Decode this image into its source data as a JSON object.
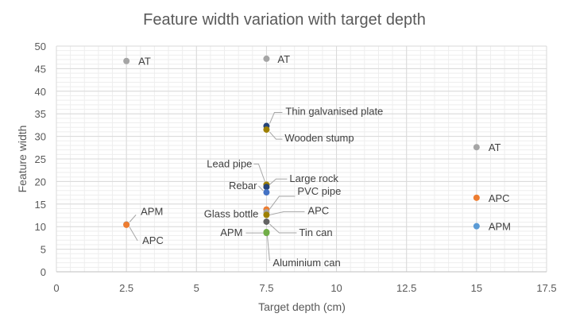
{
  "chart_data": {
    "type": "scatter",
    "title": "Feature width variation with target depth",
    "xlabel": "Target depth (cm)",
    "ylabel": "Feature width",
    "xlim": [
      0,
      17.5
    ],
    "ylim": [
      0,
      50
    ],
    "x_ticks": [
      "0",
      "2.5",
      "5",
      "7.5",
      "10",
      "12.5",
      "15",
      "17.5"
    ],
    "y_ticks": [
      "0",
      "5",
      "10",
      "15",
      "20",
      "25",
      "30",
      "35",
      "40",
      "45",
      "50"
    ],
    "x_tick_values": [
      0,
      2.5,
      5,
      7.5,
      10,
      12.5,
      15,
      17.5
    ],
    "y_tick_values": [
      0,
      5,
      10,
      15,
      20,
      25,
      30,
      35,
      40,
      45,
      50
    ],
    "grid": "major and minor",
    "legend": "none",
    "colors": {
      "gray": "#a5a5a5",
      "orange": "#ed7d31",
      "blue": "#4472c4",
      "light_blue": "#5b9bd5",
      "dark_blue": "#264478",
      "gold": "#9e8000",
      "dark_gray": "#636363",
      "green": "#70ad47"
    },
    "points": [
      {
        "x": 2.5,
        "y": 46.7,
        "color": "gray",
        "label": "AT"
      },
      {
        "x": 2.5,
        "y": 10.5,
        "color": "gray",
        "label": "APM"
      },
      {
        "x": 2.5,
        "y": 10.4,
        "color": "orange",
        "label": "APC"
      },
      {
        "x": 7.5,
        "y": 47.2,
        "color": "gray",
        "label": "AT"
      },
      {
        "x": 7.5,
        "y": 32.3,
        "color": "dark_blue",
        "label": "Thin galvanised plate"
      },
      {
        "x": 7.5,
        "y": 31.5,
        "color": "gold",
        "label": "Wooden stump"
      },
      {
        "x": 7.5,
        "y": 19.3,
        "color": "gold",
        "label": "Lead pipe"
      },
      {
        "x": 7.5,
        "y": 18.8,
        "color": "dark_blue",
        "label": "Large rock"
      },
      {
        "x": 7.5,
        "y": 17.6,
        "color": "blue",
        "label": "Rebar"
      },
      {
        "x": 7.5,
        "y": 13.8,
        "color": "orange",
        "label": "Glass bottle"
      },
      {
        "x": 7.5,
        "y": 13.2,
        "color": "gray",
        "label": "PVC pipe"
      },
      {
        "x": 7.5,
        "y": 12.6,
        "color": "gold",
        "label": "APC"
      },
      {
        "x": 7.5,
        "y": 11.1,
        "color": "dark_gray",
        "label": "Tin can"
      },
      {
        "x": 7.5,
        "y": 8.8,
        "color": "green",
        "label": "Aluminium can"
      },
      {
        "x": 7.5,
        "y": 8.6,
        "color": "green",
        "label": "APM"
      },
      {
        "x": 15,
        "y": 27.6,
        "color": "gray",
        "label": "AT"
      },
      {
        "x": 15,
        "y": 16.4,
        "color": "orange",
        "label": "APC"
      },
      {
        "x": 15,
        "y": 10.1,
        "color": "light_blue",
        "label": "APM"
      }
    ]
  }
}
